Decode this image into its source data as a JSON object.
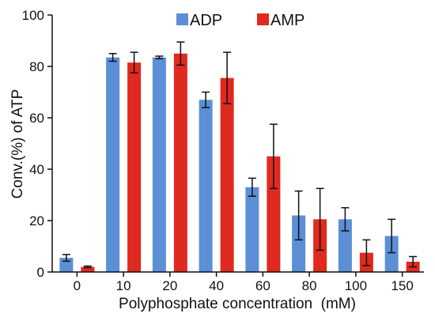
{
  "chart_data": {
    "type": "bar",
    "xlabel": "Polyphosphate concentration  (mM)",
    "ylabel": "Conv.(%) of ATP",
    "ylim": [
      0,
      100
    ],
    "yticks": [
      "0",
      "20",
      "40",
      "60",
      "80",
      "100"
    ],
    "categories": [
      "0",
      "10",
      "20",
      "40",
      "60",
      "80",
      "100",
      "150"
    ],
    "series": [
      {
        "name": "ADP",
        "color": "#5b8fd6",
        "values": [
          5.5,
          83.5,
          83.5,
          67,
          33,
          22,
          20.5,
          14
        ],
        "errors": [
          1.3,
          1.5,
          0.5,
          3,
          3.5,
          9.5,
          4.5,
          6.5
        ]
      },
      {
        "name": "AMP",
        "color": "#e02a1f",
        "values": [
          2,
          81.5,
          85,
          75.5,
          45,
          20.5,
          7.5,
          4
        ],
        "errors": [
          0.3,
          4,
          4.5,
          10,
          12.5,
          12,
          5,
          2
        ]
      }
    ],
    "legend": "top-center",
    "grid": false
  }
}
